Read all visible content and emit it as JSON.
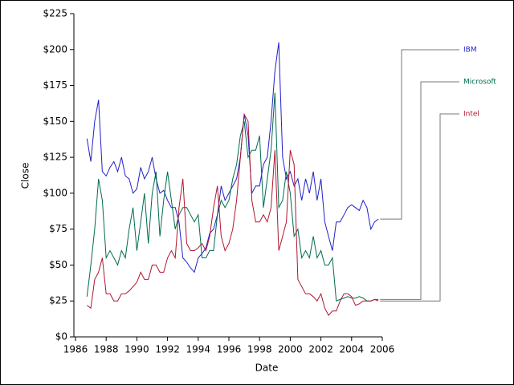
{
  "chart_data": {
    "type": "line",
    "x_label": "Date",
    "y_label": "Close",
    "x": [
      1986.75,
      1987,
      1987.25,
      1987.5,
      1987.75,
      1988,
      1988.25,
      1988.5,
      1988.75,
      1989,
      1989.25,
      1989.5,
      1989.75,
      1990,
      1990.25,
      1990.5,
      1990.75,
      1991,
      1991.25,
      1991.5,
      1991.75,
      1992,
      1992.25,
      1992.5,
      1992.75,
      1993,
      1993.25,
      1993.5,
      1993.75,
      1994,
      1994.25,
      1994.5,
      1994.75,
      1995,
      1995.25,
      1995.5,
      1995.75,
      1996,
      1996.25,
      1996.5,
      1996.75,
      1997,
      1997.25,
      1997.5,
      1997.75,
      1998,
      1998.25,
      1998.5,
      1998.75,
      1999,
      1999.25,
      1999.5,
      1999.75,
      2000,
      2000.25,
      2000.5,
      2000.75,
      2001,
      2001.25,
      2001.5,
      2001.75,
      2002,
      2002.25,
      2002.5,
      2002.75,
      2003,
      2003.25,
      2003.5,
      2003.75,
      2004,
      2004.25,
      2004.5,
      2004.75,
      2005,
      2005.25,
      2005.5,
      2005.75
    ],
    "series": [
      {
        "name": "IBM",
        "color": "#2020c8",
        "values": [
          138,
          122,
          150,
          165,
          115,
          112,
          118,
          122,
          115,
          125,
          112,
          110,
          100,
          103,
          118,
          110,
          115,
          125,
          110,
          100,
          102,
          95,
          90,
          90,
          80,
          55,
          52,
          48,
          45,
          55,
          58,
          62,
          72,
          75,
          85,
          105,
          95,
          100,
          105,
          110,
          125,
          155,
          140,
          100,
          105,
          105,
          120,
          125,
          150,
          185,
          205,
          125,
          110,
          115,
          105,
          110,
          95,
          110,
          100,
          115,
          95,
          110,
          80,
          70,
          60,
          80,
          80,
          85,
          90,
          92,
          90,
          88,
          95,
          90,
          75,
          80,
          82
        ]
      },
      {
        "name": "Microsoft",
        "color": "#006b4f",
        "values": [
          28,
          50,
          75,
          110,
          95,
          55,
          60,
          55,
          50,
          60,
          55,
          75,
          90,
          60,
          80,
          100,
          65,
          100,
          115,
          70,
          95,
          115,
          95,
          75,
          85,
          90,
          90,
          85,
          80,
          85,
          55,
          55,
          60,
          60,
          85,
          95,
          90,
          95,
          110,
          120,
          140,
          150,
          125,
          130,
          130,
          140,
          90,
          110,
          130,
          170,
          90,
          95,
          115,
          100,
          70,
          75,
          55,
          60,
          55,
          70,
          55,
          60,
          50,
          50,
          55,
          25,
          26,
          27,
          28,
          27,
          27,
          28,
          27,
          25,
          25,
          26,
          26
        ]
      },
      {
        "name": "Intel",
        "color": "#b0162f",
        "values": [
          22,
          20,
          40,
          45,
          55,
          30,
          30,
          25,
          25,
          30,
          30,
          32,
          35,
          38,
          45,
          40,
          40,
          50,
          50,
          45,
          45,
          55,
          60,
          55,
          90,
          110,
          65,
          60,
          60,
          62,
          65,
          60,
          70,
          90,
          105,
          70,
          60,
          65,
          75,
          95,
          125,
          155,
          150,
          95,
          80,
          80,
          85,
          80,
          90,
          130,
          60,
          70,
          80,
          130,
          120,
          40,
          35,
          30,
          30,
          28,
          25,
          30,
          20,
          15,
          18,
          18,
          25,
          30,
          30,
          28,
          22,
          23,
          25,
          25,
          25,
          26,
          25
        ]
      }
    ],
    "xlim": [
      1986,
      2006
    ],
    "xticks": [
      1986,
      1988,
      1990,
      1992,
      1994,
      1996,
      1998,
      2000,
      2002,
      2004,
      2006
    ],
    "ylim": [
      0,
      225
    ],
    "yticks": [
      {
        "value": 0,
        "label": "$0"
      },
      {
        "value": 25,
        "label": "$25"
      },
      {
        "value": 50,
        "label": "$50"
      },
      {
        "value": 75,
        "label": "$75"
      },
      {
        "value": 100,
        "label": "$100"
      },
      {
        "value": 125,
        "label": "$125"
      },
      {
        "value": 150,
        "label": "$150"
      },
      {
        "value": 175,
        "label": "$175"
      },
      {
        "value": 200,
        "label": "$200"
      },
      {
        "value": 225,
        "label": "$225"
      }
    ]
  }
}
